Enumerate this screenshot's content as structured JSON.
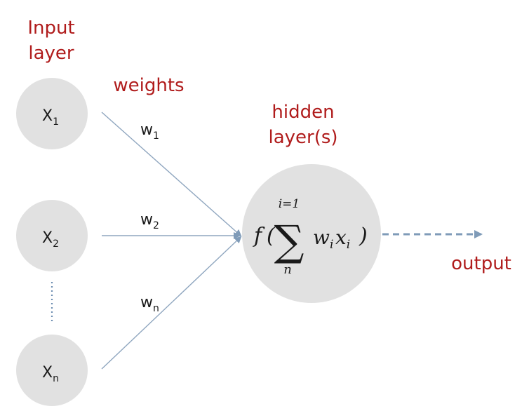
{
  "labels": {
    "input_layer": [
      "Input",
      "layer"
    ],
    "weights": "weights",
    "hidden_layer": [
      "hidden",
      "layer(s)"
    ],
    "output": "output"
  },
  "inputs": [
    {
      "base": "X",
      "sub": "1"
    },
    {
      "base": "X",
      "sub": "2"
    },
    {
      "base": "X",
      "sub": "n"
    }
  ],
  "weights": [
    {
      "base": "w",
      "sub": "1"
    },
    {
      "base": "w",
      "sub": "2"
    },
    {
      "base": "w",
      "sub": "n"
    }
  ],
  "formula": {
    "f": "f",
    "open_paren": "(",
    "sum_symbol": "∑",
    "upper": "i=1",
    "lower": "n",
    "w": "w",
    "w_sub": "i",
    "x": "x",
    "x_sub": "i",
    "close_paren": ")"
  },
  "colors": {
    "node_fill": "#e1e1e1",
    "label_red": "#b01c1c",
    "connection": "#8fa6bf",
    "output_arrow": "#7f9bb8"
  }
}
